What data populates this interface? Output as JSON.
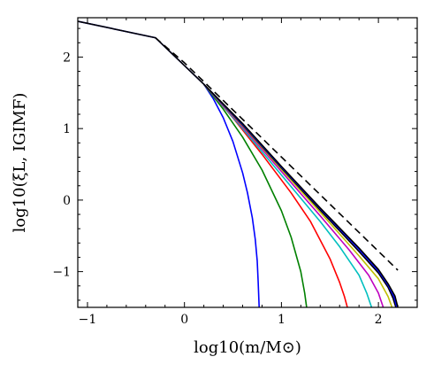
{
  "chart_data": {
    "type": "line",
    "title": "",
    "xlabel": "log10(m/M⊙)",
    "ylabel": "log10(ξL, IGIMF)",
    "xlim": [
      -1.1,
      2.4
    ],
    "ylim": [
      -1.5,
      2.55
    ],
    "xticks": [
      -1,
      0,
      1,
      2
    ],
    "yticks": [
      -1,
      0,
      1,
      2
    ],
    "grid": false,
    "series": [
      {
        "color": "#0000ff",
        "dash": "solid",
        "x": [
          -1.1,
          -0.3,
          0.2,
          0.3,
          0.4,
          0.5,
          0.6,
          0.65,
          0.7,
          0.73,
          0.75,
          0.76,
          0.77
        ],
        "y": [
          2.5,
          2.27,
          1.62,
          1.41,
          1.15,
          0.82,
          0.38,
          0.1,
          -0.25,
          -0.55,
          -0.85,
          -1.15,
          -1.5
        ]
      },
      {
        "color": "#008000",
        "dash": "solid",
        "x": [
          0.2,
          0.4,
          0.6,
          0.8,
          1.0,
          1.1,
          1.2,
          1.24,
          1.26
        ],
        "y": [
          1.62,
          1.27,
          0.88,
          0.42,
          -0.15,
          -0.52,
          -1.0,
          -1.3,
          -1.5
        ]
      },
      {
        "color": "#ff0000",
        "dash": "solid",
        "x": [
          0.2,
          0.5,
          0.8,
          1.1,
          1.3,
          1.5,
          1.6,
          1.65,
          1.68
        ],
        "y": [
          1.62,
          1.15,
          0.64,
          0.1,
          -0.3,
          -0.82,
          -1.15,
          -1.35,
          -1.5
        ]
      },
      {
        "color": "#00bfbf",
        "dash": "solid",
        "x": [
          0.2,
          0.6,
          1.0,
          1.4,
          1.6,
          1.8,
          1.88,
          1.93
        ],
        "y": [
          1.62,
          1.0,
          0.35,
          -0.3,
          -0.65,
          -1.05,
          -1.3,
          -1.5
        ]
      },
      {
        "color": "#bf00bf",
        "dash": "solid",
        "x": [
          0.2,
          0.6,
          1.0,
          1.4,
          1.7,
          1.9,
          2.0,
          2.05
        ],
        "y": [
          1.62,
          1.02,
          0.4,
          -0.22,
          -0.7,
          -1.05,
          -1.3,
          -1.5
        ]
      },
      {
        "color": "#bfbf00",
        "dash": "solid",
        "x": [
          0.2,
          0.6,
          1.0,
          1.4,
          1.8,
          2.0,
          2.1,
          2.14
        ],
        "y": [
          1.62,
          1.04,
          0.43,
          -0.17,
          -0.78,
          -1.1,
          -1.35,
          -1.5
        ]
      },
      {
        "color": "#000000",
        "dash": "solid",
        "x": [
          0.2,
          0.6,
          1.0,
          1.4,
          1.8,
          2.0,
          2.1,
          2.15,
          2.18
        ],
        "y": [
          1.62,
          1.05,
          0.45,
          -0.14,
          -0.72,
          -1.02,
          -1.22,
          -1.37,
          -1.5
        ]
      },
      {
        "color": "#0000ff",
        "dash": "solid",
        "x": [
          0.2,
          0.6,
          1.0,
          1.4,
          1.8,
          2.0,
          2.1,
          2.16,
          2.19
        ],
        "y": [
          1.62,
          1.06,
          0.46,
          -0.12,
          -0.69,
          -0.99,
          -1.19,
          -1.35,
          -1.5
        ]
      },
      {
        "color": "#000000",
        "dash": "solid",
        "x": [
          -1.1,
          -0.3,
          0.2,
          0.6,
          1.0,
          1.4,
          1.8,
          2.0,
          2.1,
          2.17,
          2.2
        ],
        "y": [
          2.5,
          2.27,
          1.62,
          1.07,
          0.47,
          -0.11,
          -0.67,
          -0.97,
          -1.17,
          -1.34,
          -1.5
        ]
      },
      {
        "color": "#000000",
        "dash": "dashed",
        "x": [
          -0.3,
          0.0,
          2.2
        ],
        "y": [
          2.27,
          1.92,
          -0.98
        ]
      }
    ]
  }
}
